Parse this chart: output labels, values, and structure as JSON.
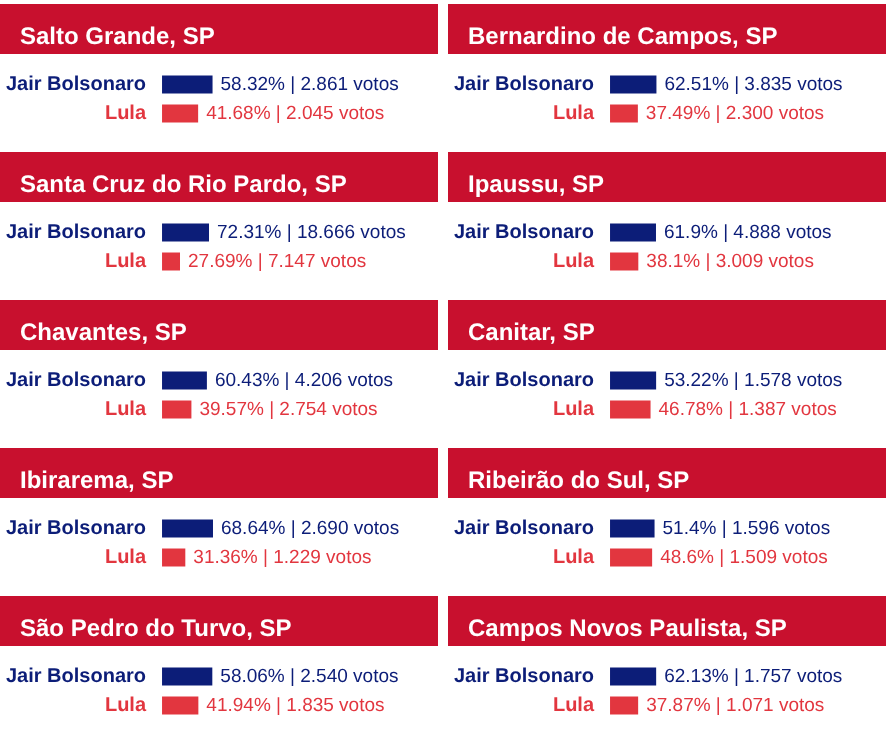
{
  "chart_data": [
    {
      "type": "bar",
      "orientation": "horizontal",
      "title": "Salto Grande, SP",
      "categories": [
        "Jair Bolsonaro",
        "Lula"
      ],
      "values": [
        58.32,
        41.68
      ],
      "colors": [
        "#0c1d78",
        "#e2363f"
      ],
      "value_labels": [
        "58.32% | 2.861 votos",
        "41.68% | 2.045 votos"
      ],
      "tick_labels": "y"
    },
    {
      "type": "bar",
      "orientation": "horizontal",
      "title": "Bernardino de Campos, SP",
      "categories": [
        "Jair Bolsonaro",
        "Lula"
      ],
      "values": [
        62.51,
        37.49
      ],
      "colors": [
        "#0c1d78",
        "#e2363f"
      ],
      "value_labels": [
        "62.51% | 3.835 votos",
        "37.49% | 2.300 votos"
      ],
      "tick_labels": "y"
    },
    {
      "type": "bar",
      "orientation": "horizontal",
      "title": "Santa Cruz do Rio Pardo, SP",
      "categories": [
        "Jair Bolsonaro",
        "Lula"
      ],
      "values": [
        72.31,
        27.69
      ],
      "colors": [
        "#0c1d78",
        "#e2363f"
      ],
      "value_labels": [
        "72.31% | 18.666 votos",
        "27.69% | 7.147 votos"
      ],
      "tick_labels": "y"
    },
    {
      "type": "bar",
      "orientation": "horizontal",
      "title": "Ipaussu, SP",
      "categories": [
        "Jair Bolsonaro",
        "Lula"
      ],
      "values": [
        61.9,
        38.1
      ],
      "colors": [
        "#0c1d78",
        "#e2363f"
      ],
      "value_labels": [
        "61.9% | 4.888 votos",
        "38.1% | 3.009 votos"
      ],
      "tick_labels": "y"
    },
    {
      "type": "bar",
      "orientation": "horizontal",
      "title": "Chavantes, SP",
      "categories": [
        "Jair Bolsonaro",
        "Lula"
      ],
      "values": [
        60.43,
        39.57
      ],
      "colors": [
        "#0c1d78",
        "#e2363f"
      ],
      "value_labels": [
        "60.43% | 4.206 votos",
        "39.57% | 2.754 votos"
      ],
      "tick_labels": "y"
    },
    {
      "type": "bar",
      "orientation": "horizontal",
      "title": "Canitar, SP",
      "categories": [
        "Jair Bolsonaro",
        "Lula"
      ],
      "values": [
        53.22,
        46.78
      ],
      "colors": [
        "#0c1d78",
        "#e2363f"
      ],
      "value_labels": [
        "53.22% | 1.578 votos",
        "46.78% | 1.387 votos"
      ],
      "tick_labels": "y"
    },
    {
      "type": "bar",
      "orientation": "horizontal",
      "title": "Ibirarema, SP",
      "categories": [
        "Jair Bolsonaro",
        "Lula"
      ],
      "values": [
        68.64,
        31.36
      ],
      "colors": [
        "#0c1d78",
        "#e2363f"
      ],
      "value_labels": [
        "68.64% | 2.690 votos",
        "31.36% | 1.229 votos"
      ],
      "tick_labels": "y"
    },
    {
      "type": "bar",
      "orientation": "horizontal",
      "title": "Ribeirão do Sul, SP",
      "categories": [
        "Jair Bolsonaro",
        "Lula"
      ],
      "values": [
        51.4,
        48.6
      ],
      "colors": [
        "#0c1d78",
        "#e2363f"
      ],
      "value_labels": [
        "51.4% | 1.596 votos",
        "48.6% | 1.509 votos"
      ],
      "tick_labels": "y"
    },
    {
      "type": "bar",
      "orientation": "horizontal",
      "title": "São Pedro do Turvo, SP",
      "categories": [
        "Jair Bolsonaro",
        "Lula"
      ],
      "values": [
        58.06,
        41.94
      ],
      "colors": [
        "#0c1d78",
        "#e2363f"
      ],
      "value_labels": [
        "58.06% | 2.540 votos",
        "41.94% | 1.835 votos"
      ],
      "tick_labels": "y"
    },
    {
      "type": "bar",
      "orientation": "horizontal",
      "title": "Campos Novos Paulista, SP",
      "categories": [
        "Jair Bolsonaro",
        "Lula"
      ],
      "values": [
        62.13,
        37.87
      ],
      "colors": [
        "#0c1d78",
        "#e2363f"
      ],
      "value_labels": [
        "62.13% | 1.757 votos",
        "37.87% | 1.071 votos"
      ],
      "tick_labels": "y"
    }
  ]
}
